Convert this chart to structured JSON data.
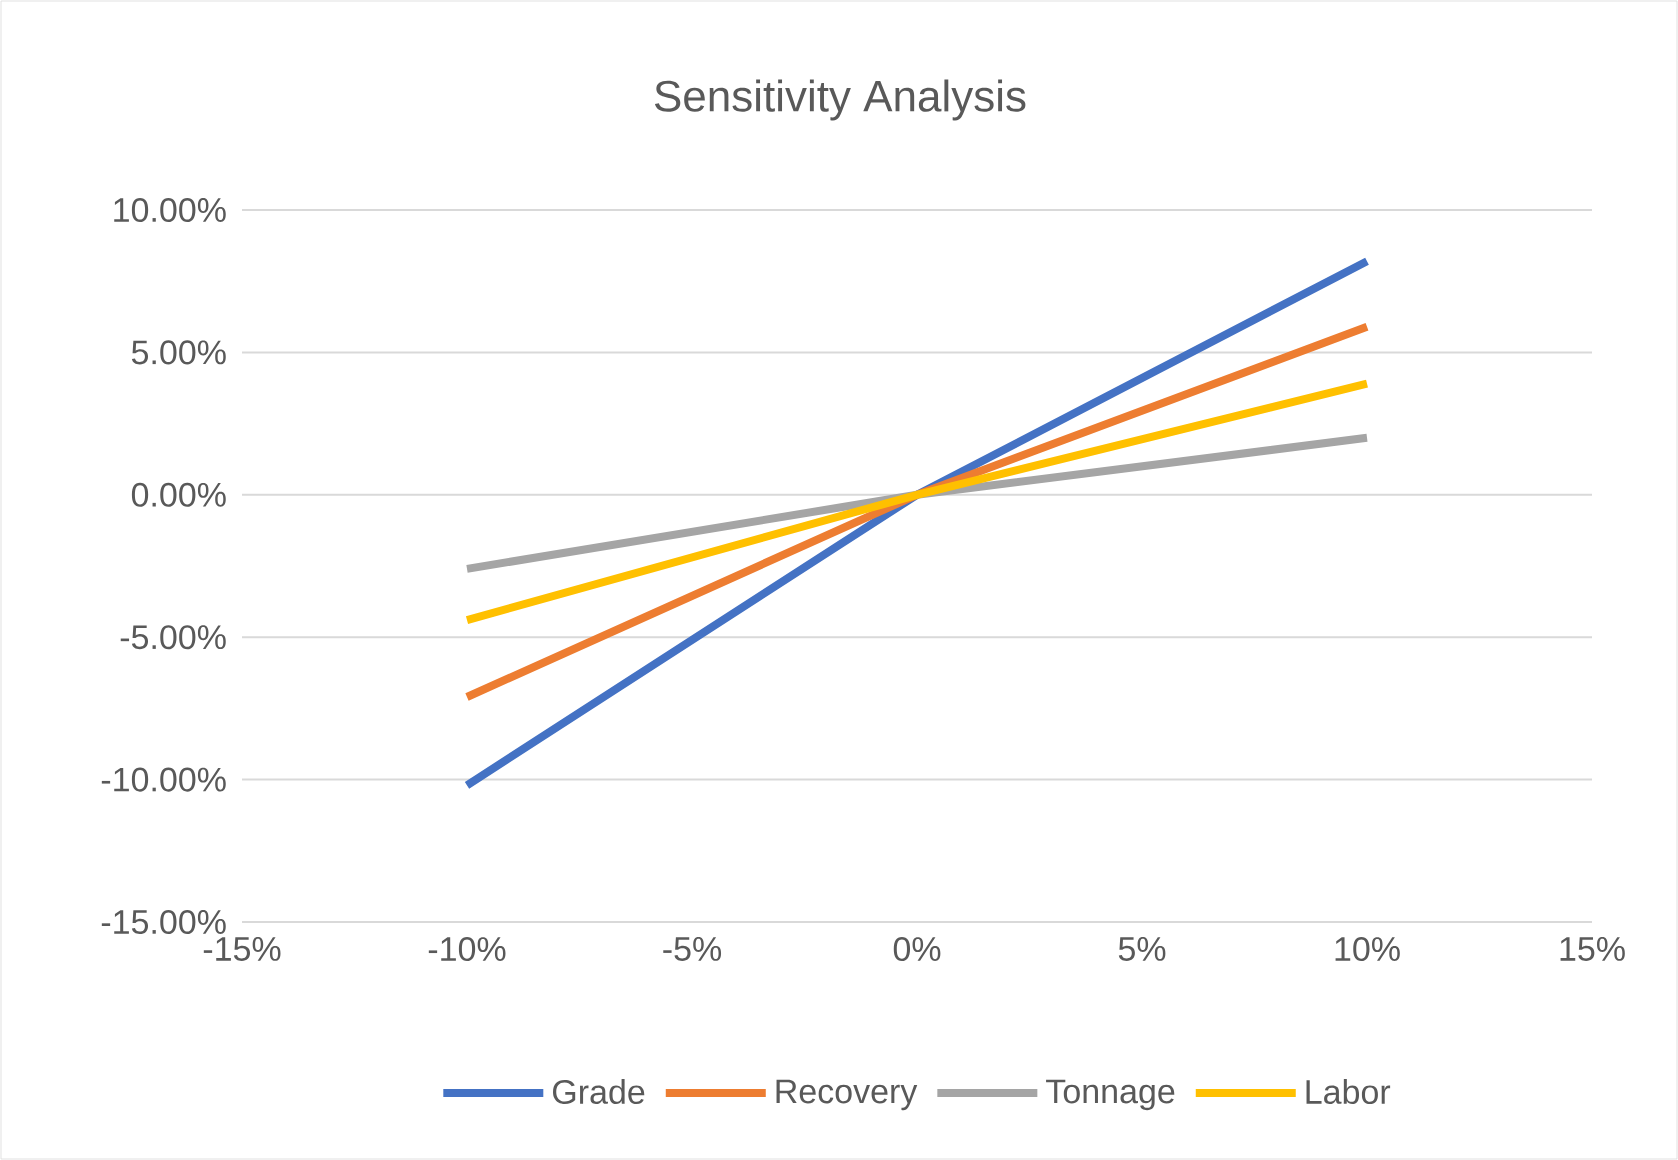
{
  "chart_data": {
    "type": "line",
    "title": "Sensitivity Analysis",
    "x": [
      -10,
      0,
      10
    ],
    "series": [
      {
        "name": "Grade",
        "color": "#4472c4",
        "values": [
          -10.2,
          0,
          8.2
        ]
      },
      {
        "name": "Recovery",
        "color": "#ed7d31",
        "values": [
          -7.1,
          0,
          5.9
        ]
      },
      {
        "name": "Tonnage",
        "color": "#a5a5a5",
        "values": [
          -2.6,
          0,
          2.0
        ]
      },
      {
        "name": "Labor",
        "color": "#ffc000",
        "values": [
          -4.4,
          0,
          3.9
        ]
      }
    ],
    "xlim": [
      -15,
      15
    ],
    "xticks": [
      {
        "value": -15,
        "label": "-15%"
      },
      {
        "value": -10,
        "label": "-10%"
      },
      {
        "value": -5,
        "label": "-5%"
      },
      {
        "value": 0,
        "label": "0%"
      },
      {
        "value": 5,
        "label": "5%"
      },
      {
        "value": 10,
        "label": "10%"
      },
      {
        "value": 15,
        "label": "15%"
      }
    ],
    "ylim": [
      -15,
      10
    ],
    "yticks": [
      {
        "value": -15,
        "label": "-15.00%"
      },
      {
        "value": -10,
        "label": "-10.00%"
      },
      {
        "value": -5,
        "label": "-5.00%"
      },
      {
        "value": 0,
        "label": "0.00%"
      },
      {
        "value": 5,
        "label": "5.00%"
      },
      {
        "value": 10,
        "label": "10.00%"
      }
    ],
    "grid": "y",
    "legend": "bottom",
    "marker": "none",
    "line_style": "solid"
  }
}
